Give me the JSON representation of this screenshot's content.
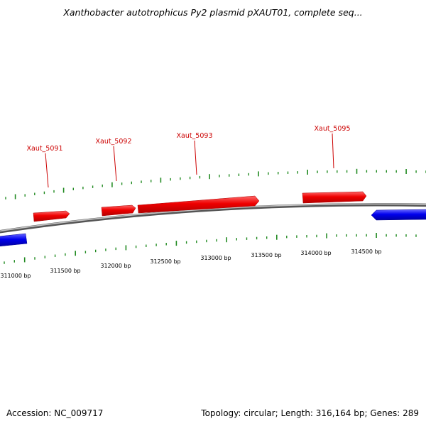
{
  "title": "Xanthobacter autotrophicus Py2 plasmid pXAUT01, complete seq...",
  "footer": {
    "accession": "Accession: NC_009717",
    "summary": "Topology: circular; Length: 316,164 bp; Genes: 289"
  },
  "colors": {
    "forward_gene": "#ff0000",
    "reverse_gene": "#0000ee",
    "backbone": "#888888",
    "tick": "#228b22",
    "gene_label": "#cc0000"
  },
  "scale_labels": [
    "311000 bp",
    "311500 bp",
    "312000 bp",
    "312500 bp",
    "313000 bp",
    "313500 bp",
    "314000 bp",
    "314500 bp"
  ],
  "gene_labels": [
    "Xaut_5091",
    "Xaut_5092",
    "Xaut_5093",
    "Xaut_5095"
  ]
}
